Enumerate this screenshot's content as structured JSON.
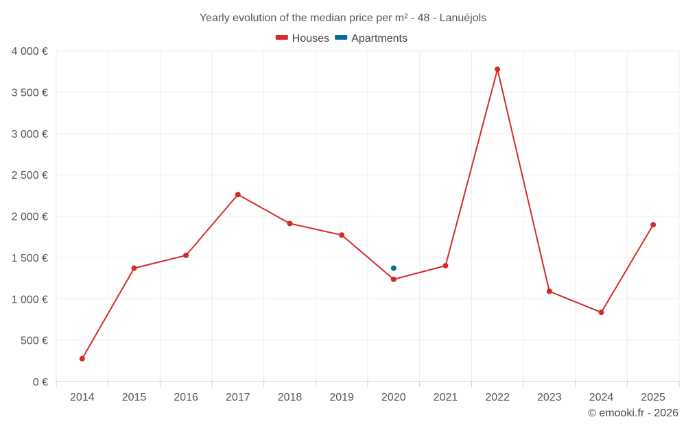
{
  "chart_data": {
    "type": "line",
    "title": "Yearly evolution of the median price per m² - 48 - Lanuéjols",
    "xlabel": "",
    "ylabel": "",
    "categories": [
      "2014",
      "2015",
      "2016",
      "2017",
      "2018",
      "2019",
      "2020",
      "2021",
      "2022",
      "2023",
      "2024",
      "2025"
    ],
    "ylim": [
      0,
      4000
    ],
    "yticks": [
      0,
      500,
      1000,
      1500,
      2000,
      2500,
      3000,
      3500,
      4000
    ],
    "ytick_labels": [
      "0 €",
      "500 €",
      "1 000 €",
      "1 500 €",
      "2 000 €",
      "2 500 €",
      "3 000 €",
      "3 500 €",
      "4 000 €"
    ],
    "grid": true,
    "legend_position": "top-center",
    "series": [
      {
        "name": "Houses",
        "color": "#d32a2a",
        "values": [
          275,
          1370,
          1525,
          2260,
          1910,
          1770,
          1235,
          1400,
          3775,
          1090,
          835,
          1895
        ]
      },
      {
        "name": "Apartments",
        "color": "#0a6a9e",
        "values": [
          null,
          null,
          null,
          null,
          null,
          null,
          1370,
          null,
          null,
          null,
          null,
          null
        ]
      }
    ]
  },
  "credit": "© emooki.fr - 2026"
}
